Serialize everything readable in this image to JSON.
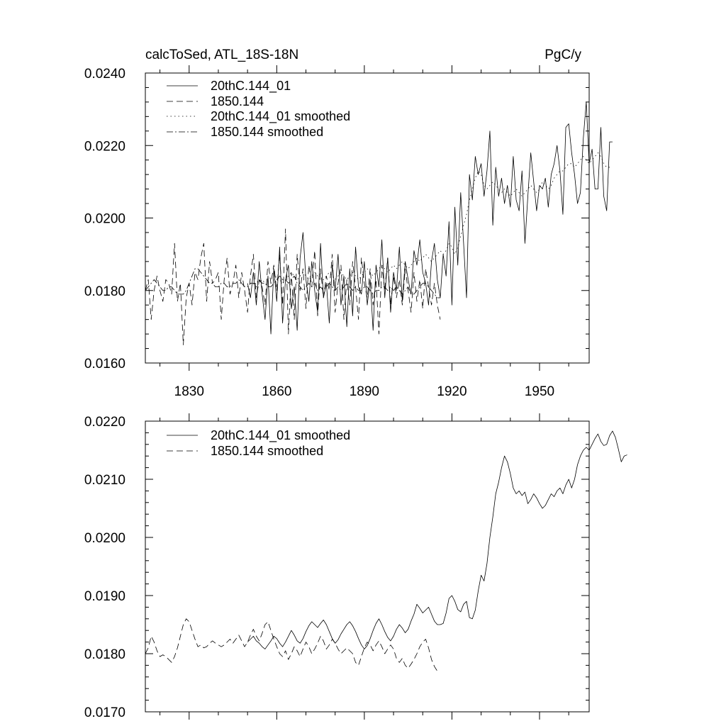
{
  "chart_data": [
    {
      "type": "line",
      "title": "calcToSed, ATL_18S-18N",
      "units": "PgC/y",
      "x_range": [
        1815,
        1967
      ],
      "ylim": [
        0.016,
        0.024
      ],
      "x_ticks": [
        1830,
        1860,
        1890,
        1920,
        1950
      ],
      "y_ticks": [
        "0.0160",
        "0.0180",
        "0.0200",
        "0.0220",
        "0.0240"
      ],
      "legend_position": "top-left",
      "series": [
        {
          "name": "20thC.144_01",
          "style": "solid",
          "x_start": 1850,
          "x_step": 1,
          "values": [
            0.0182,
            0.0178,
            0.0185,
            0.0176,
            0.0188,
            0.0179,
            0.0172,
            0.0184,
            0.0168,
            0.0186,
            0.0177,
            0.0192,
            0.0171,
            0.0183,
            0.0187,
            0.0175,
            0.0181,
            0.0169,
            0.0189,
            0.0196,
            0.0183,
            0.0177,
            0.0188,
            0.018,
            0.0174,
            0.0193,
            0.0178,
            0.0182,
            0.0171,
            0.0187,
            0.018,
            0.019,
            0.0176,
            0.0184,
            0.017,
            0.0186,
            0.0173,
            0.0192,
            0.0181,
            0.0179,
            0.0188,
            0.0176,
            0.0183,
            0.0169,
            0.0187,
            0.0181,
            0.0194,
            0.0178,
            0.0189,
            0.0174,
            0.0185,
            0.018,
            0.0192,
            0.0177,
            0.0188,
            0.0183,
            0.0179,
            0.0191,
            0.0187,
            0.0194,
            0.0185,
            0.0182,
            0.0176,
            0.0188,
            0.0193,
            0.0183,
            0.0178,
            0.019,
            0.0184,
            0.0199,
            0.0176,
            0.0203,
            0.0187,
            0.0207,
            0.0193,
            0.0178,
            0.0212,
            0.0205,
            0.0217,
            0.0212,
            0.0215,
            0.0206,
            0.0213,
            0.0224,
            0.0198,
            0.0214,
            0.0206,
            0.0211,
            0.0204,
            0.0209,
            0.0203,
            0.0217,
            0.0205,
            0.0202,
            0.0213,
            0.0193,
            0.0206,
            0.0218,
            0.021,
            0.0202,
            0.0209,
            0.0208,
            0.0211,
            0.0203,
            0.0212,
            0.0215,
            0.022,
            0.0213,
            0.0201,
            0.0225,
            0.0226,
            0.0218,
            0.0212,
            0.0204,
            0.0207,
            0.0222,
            0.0232,
            0.0215,
            0.0219,
            0.0208,
            0.0208,
            0.0225,
            0.0206,
            0.0202,
            0.0221,
            0.0221
          ]
        },
        {
          "name": "1850.144",
          "style": "dashed",
          "x_start": 1815,
          "x_step": 1,
          "values": [
            0.018,
            0.0183,
            0.0172,
            0.018,
            0.0184,
            0.018,
            0.0177,
            0.0183,
            0.0182,
            0.0179,
            0.0193,
            0.0177,
            0.0182,
            0.0165,
            0.0178,
            0.0182,
            0.0176,
            0.0185,
            0.0183,
            0.0189,
            0.0193,
            0.0177,
            0.0188,
            0.0182,
            0.0183,
            0.0185,
            0.0172,
            0.0183,
            0.0189,
            0.0179,
            0.0182,
            0.0187,
            0.0178,
            0.0185,
            0.018,
            0.0174,
            0.0184,
            0.019,
            0.0178,
            0.0183,
            0.0181,
            0.0176,
            0.0188,
            0.0182,
            0.0187,
            0.018,
            0.019,
            0.0176,
            0.0197,
            0.0168,
            0.0185,
            0.0172,
            0.019,
            0.018,
            0.0186,
            0.0175,
            0.0187,
            0.0181,
            0.0191,
            0.0173,
            0.0186,
            0.0178,
            0.0184,
            0.018,
            0.019,
            0.0174,
            0.0182,
            0.0187,
            0.0172,
            0.0183,
            0.0176,
            0.0188,
            0.0181,
            0.0172,
            0.0189,
            0.0182,
            0.0178,
            0.0186,
            0.0176,
            0.0183,
            0.0168,
            0.0187,
            0.018,
            0.0189,
            0.0176,
            0.0184,
            0.0178,
            0.0183,
            0.0176,
            0.0186,
            0.018,
            0.0174,
            0.0185,
            0.0177,
            0.0183,
            0.0175,
            0.0186,
            0.0181,
            0.0176,
            0.0182,
            0.0176,
            0.0172
          ]
        },
        {
          "name": "20thC.144_01 smoothed",
          "style": "dotted",
          "x_start": 1850,
          "x_step": 1,
          "values": [
            0.0181,
            0.0182,
            0.0182,
            0.0181,
            0.0182,
            0.0183,
            0.0182,
            0.0181,
            0.0182,
            0.0183,
            0.0184,
            0.0183,
            0.0182,
            0.0183,
            0.0184,
            0.0185,
            0.0184,
            0.0183,
            0.0184,
            0.0185,
            0.0184,
            0.0183,
            0.0184,
            0.0185,
            0.0184,
            0.0183,
            0.0183,
            0.0184,
            0.0185,
            0.0184,
            0.0183,
            0.0184,
            0.0185,
            0.0184,
            0.0183,
            0.0184,
            0.0185,
            0.0184,
            0.0183,
            0.0184,
            0.0185,
            0.0186,
            0.0185,
            0.0184,
            0.0185,
            0.0186,
            0.0187,
            0.0186,
            0.0185,
            0.0186,
            0.0187,
            0.0186,
            0.0187,
            0.0188,
            0.0187,
            0.0186,
            0.0187,
            0.0188,
            0.0189,
            0.0188,
            0.0189,
            0.019,
            0.0189,
            0.0188,
            0.0189,
            0.019,
            0.0191,
            0.019,
            0.0191,
            0.0193,
            0.0192,
            0.019,
            0.0192,
            0.0195,
            0.0198,
            0.0201,
            0.0205,
            0.0208,
            0.0211,
            0.0213,
            0.0212,
            0.0209,
            0.0208,
            0.0209,
            0.021,
            0.0209,
            0.0208,
            0.0207,
            0.0208,
            0.0207,
            0.0206,
            0.0207,
            0.0208,
            0.0207,
            0.0206,
            0.0207,
            0.0208,
            0.0209,
            0.0208,
            0.0207,
            0.0208,
            0.021,
            0.0209,
            0.0208,
            0.0209,
            0.0211,
            0.0212,
            0.0213,
            0.0213,
            0.0214,
            0.0215,
            0.0215,
            0.0214,
            0.0215,
            0.0216,
            0.0217,
            0.0216,
            0.0215,
            0.0216,
            0.0217,
            0.0218,
            0.0217,
            0.0215,
            0.0214,
            0.0214
          ]
        },
        {
          "name": "1850.144 smoothed",
          "style": "dash-dot",
          "x_start": 1815,
          "x_step": 1,
          "values": [
            0.018,
            0.0181,
            0.0182,
            0.0183,
            0.0182,
            0.0181,
            0.018,
            0.018,
            0.0181,
            0.0181,
            0.018,
            0.0179,
            0.0179,
            0.0179,
            0.018,
            0.0182,
            0.0184,
            0.0186,
            0.0186,
            0.0185,
            0.0184,
            0.0183,
            0.0182,
            0.0182,
            0.0181,
            0.0181,
            0.0182,
            0.0182,
            0.0181,
            0.0181,
            0.0182,
            0.0182,
            0.0183,
            0.0182,
            0.0181,
            0.0181,
            0.0182,
            0.0182,
            0.0182,
            0.0183,
            0.0182,
            0.0182,
            0.0181,
            0.0181,
            0.0182,
            0.0183,
            0.0184,
            0.0183,
            0.0183,
            0.0182,
            0.0183,
            0.0184,
            0.0182,
            0.0181,
            0.018,
            0.0181,
            0.0182,
            0.0181,
            0.0182,
            0.018,
            0.0181,
            0.018,
            0.0181,
            0.0182,
            0.0181,
            0.018,
            0.0181,
            0.018,
            0.0181,
            0.0182,
            0.0181,
            0.018,
            0.0181,
            0.018,
            0.018,
            0.0181,
            0.0181,
            0.018,
            0.0179,
            0.018,
            0.018,
            0.0181,
            0.0181,
            0.018,
            0.0181,
            0.018,
            0.0181,
            0.018,
            0.0179,
            0.018,
            0.0181,
            0.0179,
            0.0179,
            0.018,
            0.0181,
            0.0182,
            0.0182,
            0.0181,
            0.018,
            0.0179,
            0.0178,
            0.0178
          ]
        }
      ]
    },
    {
      "type": "line",
      "x_range": [
        1815,
        1967
      ],
      "ylim": [
        0.017,
        0.022
      ],
      "x_ticks": [
        1830,
        1860,
        1890,
        1920,
        1950
      ],
      "y_ticks": [
        "0.0170",
        "0.0180",
        "0.0190",
        "0.0200",
        "0.0210",
        "0.0220"
      ],
      "legend_position": "top-left",
      "series": [
        {
          "name": "20thC.144_01 smoothed",
          "style": "solid",
          "x_start": 1850,
          "x_step": 1,
          "values": [
            0.0182,
            0.01825,
            0.0183,
            0.01822,
            0.01818,
            0.01812,
            0.01808,
            0.01815,
            0.01822,
            0.0183,
            0.01826,
            0.01818,
            0.01812,
            0.0182,
            0.0183,
            0.0184,
            0.01832,
            0.01822,
            0.01818,
            0.01826,
            0.01838,
            0.01848,
            0.01855,
            0.0185,
            0.01845,
            0.01852,
            0.01858,
            0.0185,
            0.01838,
            0.01826,
            0.01818,
            0.01824,
            0.01834,
            0.01842,
            0.0185,
            0.01855,
            0.01848,
            0.01838,
            0.01826,
            0.01815,
            0.01808,
            0.01814,
            0.01826,
            0.0184,
            0.01852,
            0.0186,
            0.0185,
            0.01838,
            0.01828,
            0.01822,
            0.0183,
            0.01842,
            0.0185,
            0.01844,
            0.01836,
            0.01842,
            0.01856,
            0.01868,
            0.01885,
            0.01878,
            0.0187,
            0.01875,
            0.0188,
            0.01868,
            0.01856,
            0.0185,
            0.0185,
            0.01852,
            0.0187,
            0.01895,
            0.019,
            0.0189,
            0.01876,
            0.01872,
            0.01885,
            0.0189,
            0.01862,
            0.0186,
            0.01875,
            0.01908,
            0.01935,
            0.01925,
            0.01955,
            0.02,
            0.02035,
            0.02075,
            0.02095,
            0.0212,
            0.0214,
            0.0213,
            0.0211,
            0.02085,
            0.02075,
            0.0208,
            0.02072,
            0.02078,
            0.02058,
            0.02065,
            0.02075,
            0.02068,
            0.02058,
            0.0205,
            0.02055,
            0.02065,
            0.02075,
            0.0207,
            0.0208,
            0.02085,
            0.02075,
            0.0209,
            0.021,
            0.02085,
            0.021,
            0.02125,
            0.0214,
            0.0215,
            0.02155,
            0.0215,
            0.0216,
            0.0217,
            0.02178,
            0.02165,
            0.02158,
            0.0216,
            0.02175,
            0.02183,
            0.02172,
            0.02152,
            0.0213,
            0.0214,
            0.02142
          ]
        },
        {
          "name": "1850.144 smoothed",
          "style": "dashed",
          "x_start": 1815,
          "x_step": 1,
          "values": [
            0.018,
            0.0181,
            0.0183,
            0.0182,
            0.01805,
            0.01795,
            0.01798,
            0.01795,
            0.0179,
            0.01785,
            0.01795,
            0.0181,
            0.0183,
            0.0185,
            0.0186,
            0.01855,
            0.0184,
            0.01825,
            0.01812,
            0.01815,
            0.0181,
            0.01812,
            0.01818,
            0.01822,
            0.01818,
            0.01815,
            0.01812,
            0.01815,
            0.0182,
            0.01825,
            0.01818,
            0.01825,
            0.01832,
            0.01822,
            0.01812,
            0.0182,
            0.01832,
            0.01842,
            0.0183,
            0.01822,
            0.01835,
            0.0185,
            0.01855,
            0.0184,
            0.01825,
            0.01812,
            0.018,
            0.01795,
            0.01805,
            0.0179,
            0.018,
            0.01812,
            0.01805,
            0.01795,
            0.01808,
            0.0182,
            0.01812,
            0.018,
            0.01808,
            0.01818,
            0.0183,
            0.01822,
            0.01808,
            0.01815,
            0.01825,
            0.01818,
            0.01808,
            0.018,
            0.01805,
            0.0181,
            0.01805,
            0.018,
            0.01785,
            0.0178,
            0.01795,
            0.0181,
            0.0182,
            0.01815,
            0.01805,
            0.01815,
            0.01822,
            0.01812,
            0.018,
            0.01808,
            0.01815,
            0.01808,
            0.01792,
            0.01785,
            0.01792,
            0.0178,
            0.01775,
            0.01782,
            0.0179,
            0.018,
            0.01812,
            0.0182,
            0.01825,
            0.0181,
            0.0179,
            0.01778,
            0.0177
          ]
        }
      ]
    }
  ]
}
